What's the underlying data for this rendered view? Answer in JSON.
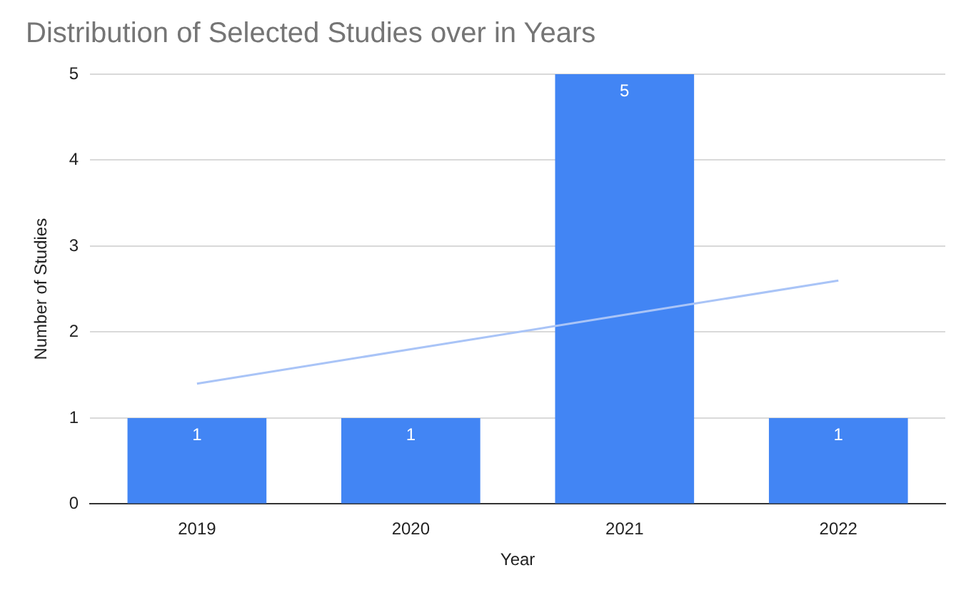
{
  "chart_data": {
    "type": "bar",
    "title": "Distribution of Selected Studies over in Years",
    "xlabel": "Year",
    "ylabel": "Number of Studies",
    "categories": [
      "2019",
      "2020",
      "2021",
      "2022"
    ],
    "series": [
      {
        "color": "#4285f4",
        "values": [
          1,
          1,
          5,
          1
        ],
        "value_labels": [
          "1",
          "1",
          "5",
          "1"
        ]
      },
      {
        "type": "line",
        "color": "#a9c4f7",
        "values": [
          1.4,
          1.8,
          2.2,
          2.6
        ]
      }
    ],
    "ylim": [
      0,
      5
    ],
    "yticks": [
      0,
      1,
      2,
      3,
      4,
      5
    ],
    "grid": "y",
    "legend": false
  }
}
